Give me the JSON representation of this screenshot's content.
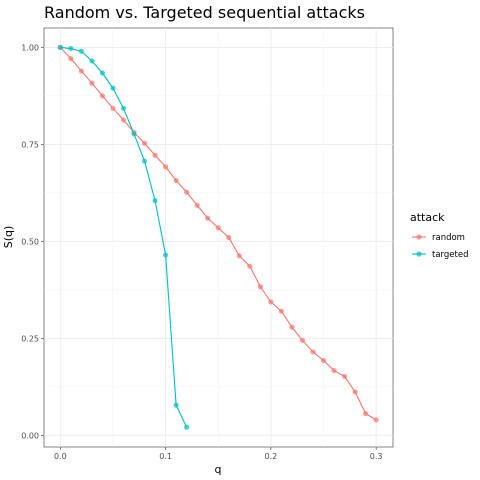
{
  "chart_data": {
    "type": "line",
    "title": "Random vs. Targeted sequential attacks",
    "xlabel": "q",
    "ylabel": "S(q)",
    "xlim": [
      -0.0155,
      0.316
    ],
    "ylim": [
      -0.03,
      1.05
    ],
    "x_ticks": [
      0.0,
      0.1,
      0.2,
      0.3
    ],
    "x_tick_labels": [
      "0.0",
      "0.1",
      "0.2",
      "0.3"
    ],
    "y_ticks": [
      0.0,
      0.25,
      0.5,
      0.75,
      1.0
    ],
    "y_tick_labels": [
      "0.00",
      "0.25",
      "0.50",
      "0.75",
      "1.00"
    ],
    "grid": true,
    "legend": {
      "title": "attack",
      "position": "right"
    },
    "series": [
      {
        "name": "random",
        "color": "#F8766D",
        "x": [
          0.0,
          0.01,
          0.02,
          0.03,
          0.04,
          0.05,
          0.06,
          0.07,
          0.08,
          0.09,
          0.1,
          0.11,
          0.12,
          0.13,
          0.14,
          0.15,
          0.16,
          0.17,
          0.18,
          0.19,
          0.2,
          0.21,
          0.22,
          0.23,
          0.24,
          0.25,
          0.26,
          0.27,
          0.28,
          0.29,
          0.3
        ],
        "y": [
          1.0,
          0.971,
          0.939,
          0.908,
          0.875,
          0.843,
          0.813,
          0.781,
          0.753,
          0.722,
          0.692,
          0.657,
          0.627,
          0.593,
          0.56,
          0.535,
          0.51,
          0.463,
          0.436,
          0.383,
          0.344,
          0.32,
          0.279,
          0.245,
          0.215,
          0.193,
          0.167,
          0.152,
          0.112,
          0.056,
          0.04
        ]
      },
      {
        "name": "targeted",
        "color": "#00BFC4",
        "x": [
          0.0,
          0.01,
          0.02,
          0.03,
          0.04,
          0.05,
          0.06,
          0.07,
          0.08,
          0.09,
          0.1,
          0.11,
          0.12
        ],
        "y": [
          1.0,
          0.997,
          0.99,
          0.965,
          0.934,
          0.895,
          0.843,
          0.777,
          0.707,
          0.605,
          0.465,
          0.078,
          0.021
        ]
      }
    ]
  }
}
